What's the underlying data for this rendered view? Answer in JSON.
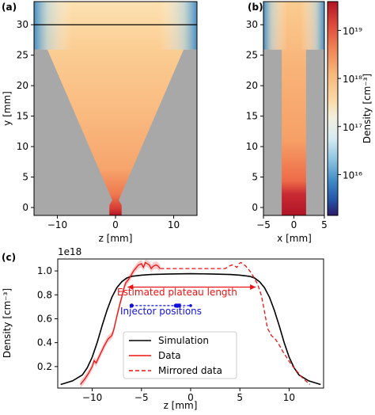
{
  "chart_data": [
    {
      "panel": "(a)",
      "type": "heatmap",
      "xlabel": "z [mm]",
      "ylabel": "y [mm]",
      "xticks": [
        -10,
        0,
        10
      ],
      "yticks": [
        0,
        5,
        10,
        15,
        20,
        25,
        30
      ],
      "xlim": [
        -14,
        14
      ],
      "ylim": [
        -1.3,
        33.8
      ],
      "cut_line_y": 30,
      "nozzle_top_y": 25.9
    },
    {
      "panel": "(b)",
      "type": "heatmap",
      "xlabel": "x [mm]",
      "xticks": [
        -5,
        0,
        5
      ],
      "yticks": [
        0,
        5,
        10,
        15,
        20,
        25,
        30
      ],
      "xlim": [
        -5,
        5
      ],
      "ylim": [
        -1.3,
        33.8
      ],
      "channel_half_width": 2,
      "colorbar": {
        "label": "Density [cm⁻³]",
        "scale": "log",
        "ticks": [
          "10¹⁶",
          "10¹⁷",
          "10¹⁸",
          "10¹⁹"
        ],
        "tick_values": [
          16,
          17,
          18,
          19
        ],
        "range_log10": [
          15.15,
          19.6
        ]
      }
    },
    {
      "panel": "(c)",
      "type": "line",
      "xlabel": "z [mm]",
      "ylabel": "Density [cm⁻³]",
      "offset_text": "1e18",
      "xlim": [
        -13.5,
        13.5
      ],
      "ylim": [
        0.02,
        1.1
      ],
      "xticks": [
        -10,
        -5,
        0,
        5,
        10
      ],
      "yticks": [
        0.2,
        0.4,
        0.6,
        0.8,
        1.0
      ],
      "xtick_labels": [
        "−10",
        "−5",
        "0",
        "5",
        "10"
      ],
      "ytick_labels": [
        "0.2",
        "0.4",
        "0.6",
        "0.8",
        "1.0"
      ],
      "legend_position": "lower-center",
      "series": [
        {
          "name": "Simulation",
          "color": "#000000",
          "style": "solid",
          "x": [
            -13.2,
            -12,
            -11,
            -10.5,
            -10,
            -9.5,
            -9,
            -8.5,
            -8,
            -7.5,
            -7,
            -6.5,
            -6,
            -5,
            -4,
            -2,
            0,
            2,
            4,
            5,
            6,
            6.5,
            7,
            7.5,
            8,
            8.5,
            9,
            9.5,
            10,
            10.5,
            11,
            12,
            13.2
          ],
          "y": [
            0.05,
            0.08,
            0.13,
            0.19,
            0.28,
            0.4,
            0.54,
            0.67,
            0.78,
            0.86,
            0.91,
            0.94,
            0.955,
            0.965,
            0.97,
            0.975,
            0.977,
            0.975,
            0.97,
            0.965,
            0.955,
            0.94,
            0.91,
            0.86,
            0.78,
            0.67,
            0.54,
            0.4,
            0.28,
            0.19,
            0.13,
            0.08,
            0.05
          ]
        },
        {
          "name": "Data",
          "color": "#ee1111",
          "style": "solid",
          "x": [
            -11.2,
            -10.8,
            -10.4,
            -10,
            -9.8,
            -9.6,
            -9.2,
            -8.8,
            -8.4,
            -8,
            -7.8,
            -7.5,
            -7.2,
            -7,
            -6.8,
            -6.6,
            -6.3,
            -6,
            -5.8,
            -5.6,
            -5.3,
            -5,
            -4.8,
            -4.6,
            -4.4,
            -4.2,
            -4,
            -3.8,
            -3.5,
            -3.3,
            -3.1
          ],
          "y": [
            0.05,
            0.09,
            0.14,
            0.2,
            0.25,
            0.23,
            0.3,
            0.37,
            0.43,
            0.46,
            0.51,
            0.62,
            0.72,
            0.78,
            0.85,
            0.9,
            0.93,
            0.97,
            1.0,
            1.02,
            1.05,
            1.06,
            1.03,
            1.07,
            1.06,
            1.05,
            1.02,
            1.04,
            1.05,
            1.04,
            1.02
          ]
        },
        {
          "name": "Mirrored data",
          "color": "#ee1111",
          "style": "dashed",
          "x": [
            -3.1,
            3.5,
            3.9,
            4.2,
            4.5,
            4.7,
            4.9,
            5.1,
            5.3,
            5.6,
            6,
            6.4,
            6.8,
            7,
            7.2,
            7.5,
            7.8,
            8.2,
            8.6,
            9,
            9.4,
            9.8,
            10.2,
            10.6,
            11,
            11.3,
            11.7,
            12.1
          ],
          "y": [
            1.02,
            1.02,
            1.04,
            1.05,
            1.04,
            1.03,
            1.06,
            1.07,
            1.06,
            1.04,
            1.0,
            0.95,
            0.89,
            0.84,
            0.79,
            0.66,
            0.52,
            0.46,
            0.43,
            0.38,
            0.32,
            0.27,
            0.22,
            0.18,
            0.14,
            0.11,
            0.08,
            0.05
          ]
        }
      ],
      "annotations": {
        "plateau_label": "Estimated plateau length",
        "plateau_from": -6.4,
        "plateau_to": 6.6,
        "plateau_y": 0.865,
        "plateau_color": "#ee1111",
        "injector_label": "Injector positions",
        "injector_from": -6,
        "injector_to": 0,
        "injector_y": 0.71,
        "injector_markers_x": [
          -6,
          -1.5,
          -1.2
        ],
        "injector_color": "#1111dd"
      },
      "legend": {
        "entries": [
          "Simulation",
          "Data",
          "Mirrored data"
        ]
      }
    }
  ]
}
